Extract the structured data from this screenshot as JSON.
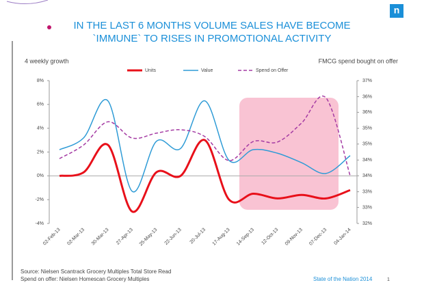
{
  "header": {
    "title_lines": [
      "IN THE LAST 6 MONTHS VOLUME SALES HAVE BECOME",
      "`IMMUNE` TO RISES IN PROMOTIONAL ACTIVITY"
    ],
    "logo": "n"
  },
  "chart_data": {
    "type": "line",
    "y_label": "4 weekly growth",
    "y2_label": "FMCG spend bought on offer",
    "categories": [
      "02-Feb-13",
      "02-Mar-13",
      "30-Mar-13",
      "27-Apr-13",
      "25-May-13",
      "22-Jun-13",
      "20-Jul-13",
      "17-Aug-13",
      "14-Sep-13",
      "12-Oct-13",
      "09-Nov-13",
      "07-Dec-13",
      "04-Jan-14"
    ],
    "series": [
      {
        "name": "Units",
        "color": "#e8101a",
        "values": [
          0,
          0.3,
          2.6,
          -3.0,
          0.3,
          0,
          3.0,
          -2.0,
          -1.5,
          -1.9,
          -1.6,
          -1.9,
          -1.2
        ]
      },
      {
        "name": "Value",
        "color": "#2e9bd6",
        "values": [
          2.2,
          3.2,
          6.3,
          -1.3,
          2.9,
          2.3,
          6.3,
          1.3,
          2.2,
          1.9,
          1.1,
          0.2,
          1.7
        ]
      },
      {
        "name": "Spend on Offer",
        "color": "#a43aa3",
        "axis": "y2",
        "dashed": true,
        "values": [
          34.27,
          34.75,
          35.56,
          34.99,
          35.16,
          35.28,
          35.04,
          34.2,
          34.87,
          34.85,
          35.52,
          36.4,
          33.67
        ]
      }
    ],
    "ylim": [
      -4,
      8
    ],
    "yticks": [
      {
        "value": -4,
        "label": "-4%"
      },
      {
        "value": -2,
        "label": "-2%"
      },
      {
        "value": 0,
        "label": "0%"
      },
      {
        "value": 2,
        "label": "2%"
      },
      {
        "value": 4,
        "label": "4%"
      },
      {
        "value": 6,
        "label": "6%"
      },
      {
        "value": 8,
        "label": "8%"
      }
    ],
    "y2lim": [
      32,
      37
    ],
    "y2ticks": [
      {
        "value": 32,
        "label": "32%"
      },
      {
        "value": 32.56,
        "label": "33%"
      },
      {
        "value": 33.11,
        "label": "33%"
      },
      {
        "value": 33.67,
        "label": "34%"
      },
      {
        "value": 34.22,
        "label": "34%"
      },
      {
        "value": 34.78,
        "label": "35%"
      },
      {
        "value": 35.33,
        "label": "35%"
      },
      {
        "value": 35.89,
        "label": "36%"
      },
      {
        "value": 36.44,
        "label": "36%"
      },
      {
        "value": 37,
        "label": "37%"
      }
    ]
  },
  "footer": {
    "source": "Source:  Nielsen Scantrack Grocery Multiples Total Store  Read",
    "spend": "Spend on offer:  Nielsen Homescan Grocery Multiples",
    "brand": "State of the Nation 2014",
    "page": "1"
  }
}
